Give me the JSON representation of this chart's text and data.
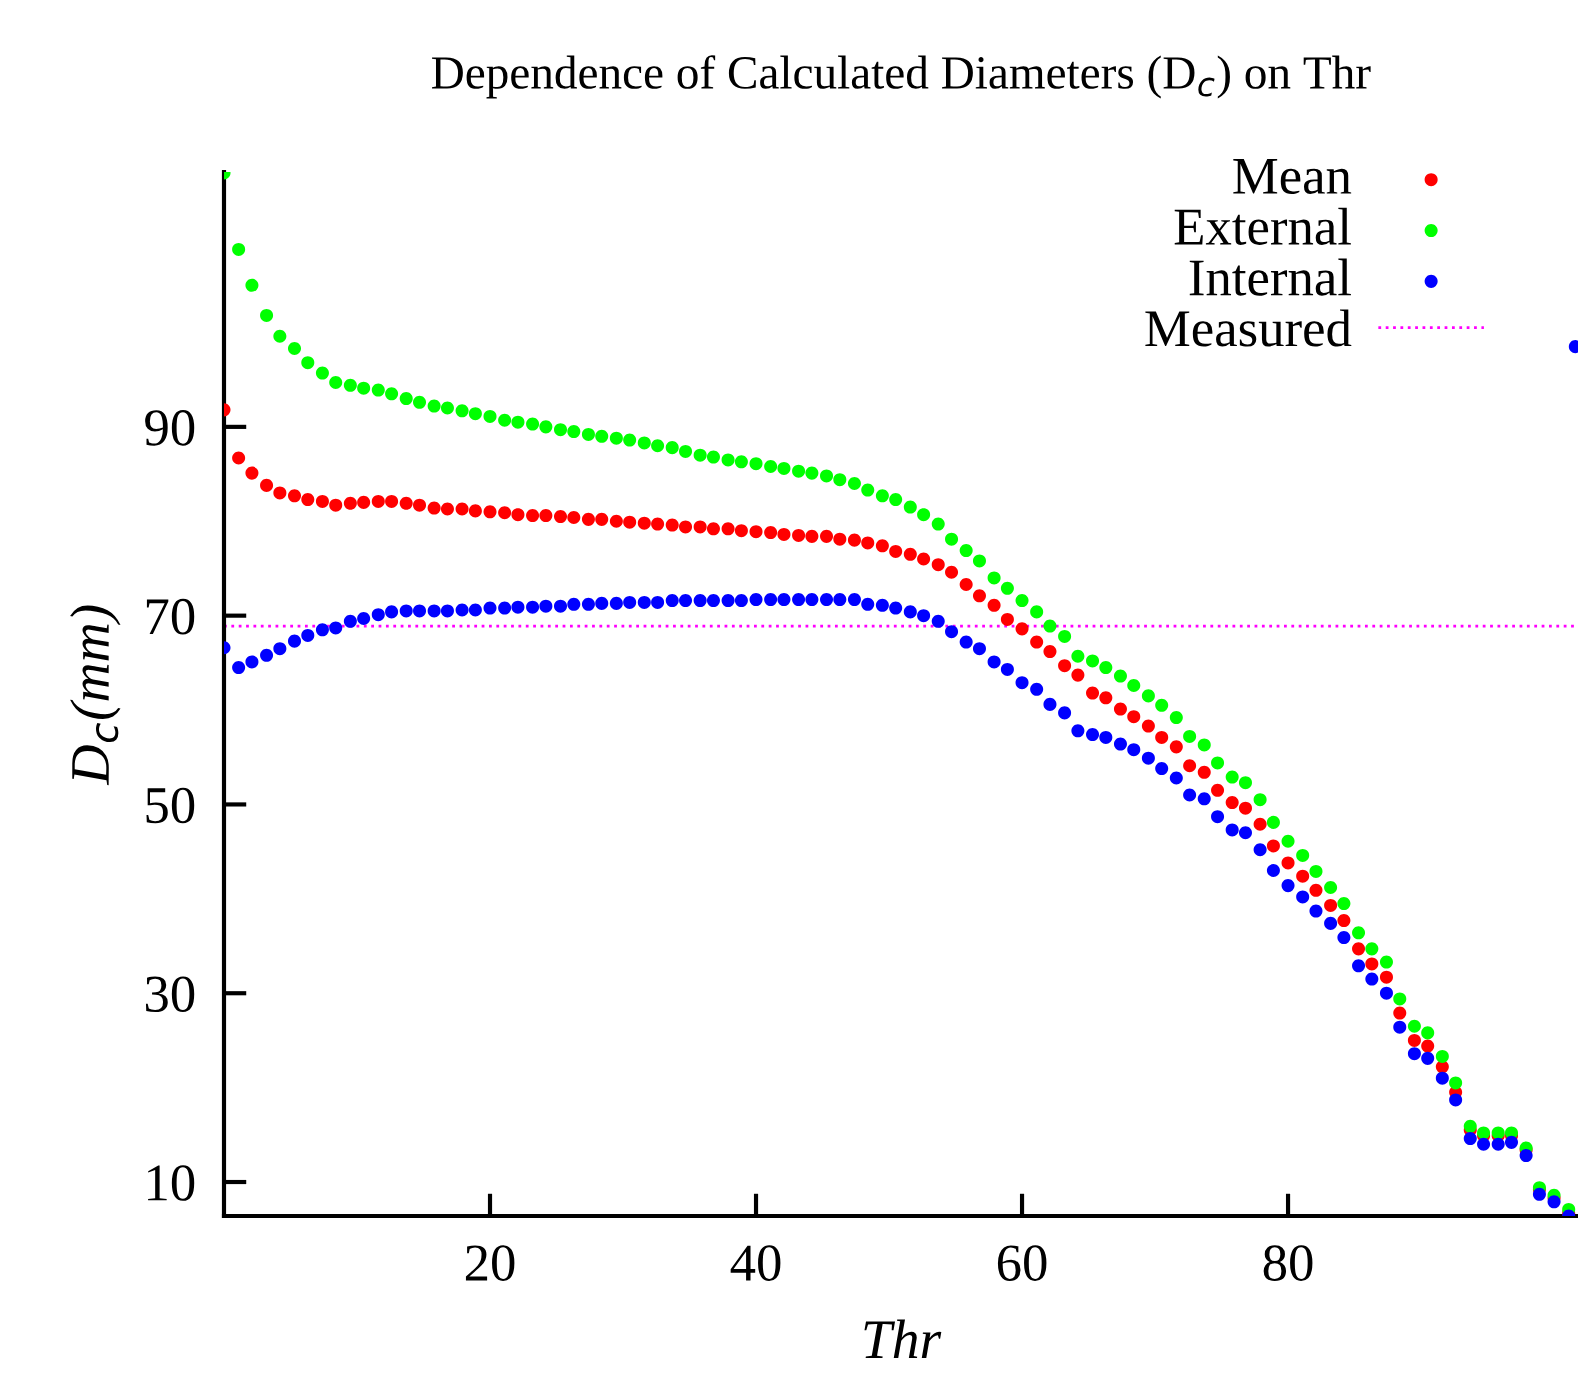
{
  "chart_data": {
    "type": "scatter",
    "title": "Dependence of Calculated Diameters (D$_{c}$) on Thr",
    "xlabel": "Thr",
    "ylabel": "D$_{c}$(mm)",
    "x": [
      0,
      1.1,
      2.1,
      3.2,
      4.2,
      5.3,
      6.3,
      7.4,
      8.4,
      9.5,
      10.5,
      11.6,
      12.6,
      13.7,
      14.7,
      15.8,
      16.8,
      17.9,
      18.9,
      20.0,
      21.1,
      22.1,
      23.2,
      24.2,
      25.3,
      26.3,
      27.4,
      28.4,
      29.5,
      30.5,
      31.6,
      32.6,
      33.7,
      34.7,
      35.8,
      36.8,
      37.9,
      38.9,
      40.0,
      41.1,
      42.1,
      43.2,
      44.2,
      45.3,
      46.3,
      47.4,
      48.4,
      49.5,
      50.5,
      51.6,
      52.6,
      53.7,
      54.7,
      55.8,
      56.8,
      57.9,
      58.9,
      60.0,
      61.1,
      62.1,
      63.2,
      64.2,
      65.3,
      66.3,
      67.4,
      68.4,
      69.5,
      70.5,
      71.6,
      72.6,
      73.7,
      74.7,
      75.8,
      76.8,
      77.9,
      78.9,
      80.0,
      81.1,
      82.1,
      83.2,
      84.2,
      85.3,
      86.3,
      87.4,
      88.4,
      89.5,
      90.5,
      91.6,
      92.6,
      93.7,
      94.7,
      95.8,
      96.8,
      97.9,
      98.9,
      100.0,
      101.1
    ],
    "series": [
      {
        "name": "Mean",
        "color": "#ff0000",
        "values": [
          91.8,
          86.7,
          85.1,
          83.8,
          83.0,
          82.7,
          82.3,
          82.1,
          81.7,
          81.9,
          82.0,
          82.1,
          82.1,
          81.9,
          81.7,
          81.4,
          81.3,
          81.3,
          81.1,
          81.0,
          80.9,
          80.7,
          80.6,
          80.6,
          80.5,
          80.4,
          80.2,
          80.2,
          80.0,
          79.9,
          79.8,
          79.7,
          79.6,
          79.4,
          79.4,
          79.2,
          79.2,
          79.0,
          78.9,
          78.8,
          78.6,
          78.5,
          78.4,
          78.4,
          78.1,
          78.0,
          77.7,
          77.4,
          76.8,
          76.5,
          76.0,
          75.4,
          74.6,
          73.3,
          72.1,
          71.1,
          69.6,
          68.6,
          67.2,
          66.2,
          64.7,
          63.7,
          61.8,
          61.3,
          60.1,
          59.3,
          58.3,
          57.1,
          56.1,
          54.1,
          53.4,
          51.5,
          50.2,
          49.6,
          47.9,
          45.6,
          43.8,
          42.4,
          40.9,
          39.3,
          37.7,
          34.7,
          33.1,
          31.7,
          27.9,
          25.0,
          24.4,
          22.2,
          19.5,
          15.5,
          14.9,
          14.9,
          14.9,
          13.4,
          9.2,
          8.3,
          6.7
        ]
      },
      {
        "name": "External",
        "color": "#00ff00",
        "values": [
          116.9,
          108.8,
          105.0,
          101.8,
          99.6,
          98.3,
          96.8,
          95.7,
          94.7,
          94.4,
          94.1,
          93.9,
          93.5,
          93.0,
          92.6,
          92.2,
          92.0,
          91.7,
          91.4,
          91.1,
          90.7,
          90.5,
          90.3,
          90.0,
          89.7,
          89.5,
          89.2,
          89.0,
          88.8,
          88.6,
          88.3,
          88.0,
          87.8,
          87.4,
          87.0,
          86.8,
          86.5,
          86.3,
          86.1,
          85.8,
          85.6,
          85.3,
          85.1,
          84.8,
          84.4,
          84.0,
          83.3,
          82.7,
          82.3,
          81.5,
          80.7,
          79.7,
          78.1,
          76.9,
          75.8,
          74.0,
          72.9,
          71.6,
          70.4,
          68.9,
          67.8,
          65.7,
          65.2,
          64.5,
          63.6,
          62.6,
          61.5,
          60.5,
          59.2,
          57.2,
          56.3,
          54.4,
          52.9,
          52.3,
          50.5,
          48.1,
          46.1,
          44.6,
          42.9,
          41.2,
          39.5,
          36.4,
          34.7,
          33.3,
          29.4,
          26.5,
          25.8,
          23.3,
          20.5,
          15.9,
          15.2,
          15.2,
          15.2,
          13.6,
          9.4,
          8.6,
          7.1
        ]
      },
      {
        "name": "Internal",
        "color": "#0000ff",
        "x": [
          0,
          1.1,
          2.1,
          3.2,
          4.2,
          5.3,
          6.3,
          7.4,
          8.4,
          9.5,
          10.5,
          11.6,
          12.6,
          13.7,
          14.7,
          15.8,
          16.8,
          17.9,
          18.9,
          20.0,
          21.1,
          22.1,
          23.2,
          24.2,
          25.3,
          26.3,
          27.4,
          28.4,
          29.5,
          30.5,
          31.6,
          32.6,
          33.7,
          34.7,
          35.8,
          36.8,
          37.9,
          38.9,
          40.0,
          41.1,
          42.1,
          43.2,
          44.2,
          45.3,
          46.3,
          47.4,
          48.4,
          49.5,
          50.5,
          51.6,
          52.6,
          53.7,
          54.7,
          55.8,
          56.8,
          57.9,
          58.9,
          60.0,
          61.1,
          62.1,
          63.2,
          64.2,
          65.3,
          66.3,
          67.4,
          68.4,
          69.5,
          70.5,
          71.6,
          72.6,
          73.7,
          74.7,
          75.8,
          76.8,
          77.9,
          78.9,
          80.0,
          81.1,
          82.1,
          83.2,
          84.2,
          85.3,
          86.3,
          87.4,
          88.4,
          89.5,
          90.5,
          91.6,
          92.6,
          93.7,
          94.7,
          95.8,
          96.8,
          97.9,
          98.9,
          100.0,
          101.1,
          101.6
        ],
        "values": [
          66.6,
          64.5,
          65.1,
          65.8,
          66.5,
          67.3,
          67.9,
          68.5,
          68.7,
          69.4,
          69.7,
          70.1,
          70.4,
          70.5,
          70.5,
          70.5,
          70.5,
          70.6,
          70.6,
          70.8,
          70.8,
          70.9,
          70.9,
          71.0,
          71.0,
          71.2,
          71.2,
          71.3,
          71.3,
          71.4,
          71.4,
          71.4,
          71.6,
          71.6,
          71.6,
          71.6,
          71.6,
          71.6,
          71.7,
          71.7,
          71.7,
          71.7,
          71.7,
          71.7,
          71.7,
          71.7,
          71.2,
          71.1,
          70.8,
          70.4,
          70.0,
          69.4,
          68.3,
          67.2,
          66.5,
          65.1,
          64.3,
          62.9,
          62.2,
          60.6,
          59.7,
          57.8,
          57.4,
          57.1,
          56.4,
          55.8,
          54.9,
          53.8,
          52.8,
          51.0,
          50.6,
          48.7,
          47.3,
          47.0,
          45.2,
          43.0,
          41.4,
          40.2,
          38.7,
          37.4,
          35.9,
          32.9,
          31.5,
          30.0,
          26.4,
          23.6,
          23.1,
          21.0,
          18.7,
          14.6,
          14.0,
          14.0,
          14.2,
          12.8,
          8.7,
          7.9,
          6.4,
          98.5
        ]
      }
    ],
    "ref_lines": [
      {
        "axis": "y",
        "value": 68.9,
        "label": "Measured",
        "color": "#ff00ff",
        "line_style": "dotted"
      }
    ],
    "xlim": [
      0,
      101.8
    ],
    "ylim": [
      6.4,
      117
    ],
    "xticks": [
      20,
      40,
      60,
      80
    ],
    "yticks": [
      10,
      30,
      50,
      70,
      90
    ],
    "marker": "circle",
    "grid": false,
    "legend": "top right"
  }
}
